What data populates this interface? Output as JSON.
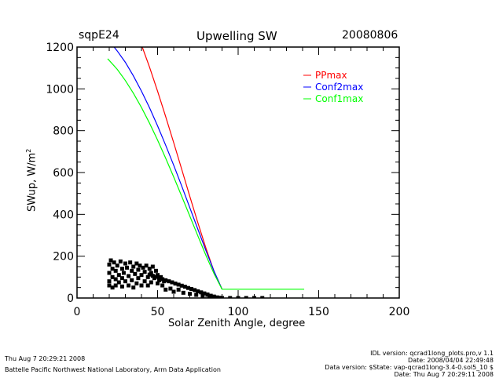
{
  "header": {
    "site": "sqpE24",
    "title": "Upwelling SW",
    "date": "20080806"
  },
  "footer": {
    "left_timestamp": "Thu Aug  7 20:29:21 2008",
    "left_org": "Battelle Pacific Northwest National Laboratory, Arm Data Application",
    "right_lines": [
      "IDL version: qcrad1long_plots.pro,v 1.1",
      "Date: 2008/04/04 22:49:48",
      "Data version: $State: vap-qcrad1long-3.4-0.sol5_10 $",
      "Date: Thu Aug  7 20:29:11 2008"
    ]
  },
  "chart_data": {
    "type": "line",
    "xlabel": "Solar Zenith Angle, degree",
    "ylabel": "SWup, W/m",
    "ylabel_sup": "2",
    "xlim": [
      0,
      200
    ],
    "ylim": [
      0,
      1200
    ],
    "xticks": [
      0,
      50,
      100,
      150,
      200
    ],
    "yticks": [
      0,
      200,
      400,
      600,
      800,
      1000,
      1200
    ],
    "legend_position": "top-right",
    "series": [
      {
        "name": "PPmax",
        "color": "#ff0000",
        "points": [
          [
            40.5,
            1200
          ],
          [
            45,
            1104
          ],
          [
            50,
            989
          ],
          [
            55,
            868
          ],
          [
            60,
            743
          ],
          [
            65,
            615
          ],
          [
            70,
            486
          ],
          [
            75,
            360
          ],
          [
            80,
            239
          ],
          [
            85,
            128
          ],
          [
            90,
            42
          ]
        ]
      },
      {
        "name": "Conf2max",
        "color": "#0000ff",
        "points": [
          [
            23,
            1200
          ],
          [
            25,
            1181
          ],
          [
            30,
            1127
          ],
          [
            35,
            1062
          ],
          [
            40,
            989
          ],
          [
            45,
            910
          ],
          [
            50,
            823
          ],
          [
            55,
            731
          ],
          [
            60,
            635
          ],
          [
            65,
            535
          ],
          [
            70,
            432
          ],
          [
            75,
            329
          ],
          [
            80,
            227
          ],
          [
            85,
            129
          ],
          [
            90,
            42
          ]
        ]
      },
      {
        "name": "Conf1max",
        "color": "#00ff00",
        "points": [
          [
            19,
            1144
          ],
          [
            20,
            1136
          ],
          [
            25,
            1093
          ],
          [
            30,
            1040
          ],
          [
            35,
            979
          ],
          [
            40,
            911
          ],
          [
            45,
            836
          ],
          [
            50,
            755
          ],
          [
            55,
            669
          ],
          [
            60,
            579
          ],
          [
            65,
            486
          ],
          [
            70,
            392
          ],
          [
            75,
            297
          ],
          [
            80,
            204
          ],
          [
            85,
            117
          ],
          [
            90,
            42
          ],
          [
            141,
            42
          ]
        ]
      }
    ],
    "scatter": {
      "color": "#000000",
      "points": [
        [
          20,
          160
        ],
        [
          20,
          120
        ],
        [
          20,
          80
        ],
        [
          20,
          60
        ],
        [
          21,
          180
        ],
        [
          22,
          140
        ],
        [
          22,
          100
        ],
        [
          22,
          50
        ],
        [
          23,
          170
        ],
        [
          24,
          130
        ],
        [
          24,
          90
        ],
        [
          24,
          60
        ],
        [
          25,
          155
        ],
        [
          26,
          110
        ],
        [
          26,
          75
        ],
        [
          27,
          175
        ],
        [
          28,
          140
        ],
        [
          28,
          95
        ],
        [
          28,
          55
        ],
        [
          29,
          120
        ],
        [
          30,
          165
        ],
        [
          30,
          80
        ],
        [
          31,
          145
        ],
        [
          32,
          105
        ],
        [
          32,
          60
        ],
        [
          33,
          170
        ],
        [
          34,
          130
        ],
        [
          34,
          85
        ],
        [
          35,
          150
        ],
        [
          35,
          50
        ],
        [
          36,
          115
        ],
        [
          37,
          165
        ],
        [
          37,
          70
        ],
        [
          38,
          135
        ],
        [
          38,
          95
        ],
        [
          39,
          155
        ],
        [
          40,
          110
        ],
        [
          40,
          60
        ],
        [
          41,
          145
        ],
        [
          42,
          80
        ],
        [
          42,
          125
        ],
        [
          43,
          155
        ],
        [
          44,
          100
        ],
        [
          44,
          60
        ],
        [
          45,
          140
        ],
        [
          46,
          120
        ],
        [
          46,
          75
        ],
        [
          47,
          150
        ],
        [
          48,
          95
        ],
        [
          49,
          130
        ],
        [
          50,
          110
        ],
        [
          50,
          70
        ],
        [
          51,
          85
        ],
        [
          52,
          100
        ],
        [
          53,
          60
        ],
        [
          54,
          80
        ],
        [
          45,
          112
        ],
        [
          47,
          106
        ],
        [
          49,
          101
        ],
        [
          51,
          96
        ],
        [
          53,
          90
        ],
        [
          55,
          85
        ],
        [
          57,
          80
        ],
        [
          59,
          75
        ],
        [
          61,
          69
        ],
        [
          63,
          64
        ],
        [
          65,
          59
        ],
        [
          67,
          54
        ],
        [
          69,
          48
        ],
        [
          71,
          43
        ],
        [
          73,
          38
        ],
        [
          75,
          32
        ],
        [
          77,
          27
        ],
        [
          79,
          22
        ],
        [
          81,
          17
        ],
        [
          83,
          11
        ],
        [
          85,
          7
        ],
        [
          87,
          3
        ],
        [
          89,
          1
        ],
        [
          55,
          40
        ],
        [
          58,
          45
        ],
        [
          60,
          30
        ],
        [
          63,
          40
        ],
        [
          66,
          25
        ],
        [
          70,
          20
        ],
        [
          74,
          15
        ],
        [
          78,
          10
        ],
        [
          82,
          5
        ],
        [
          90,
          0
        ],
        [
          95,
          0
        ],
        [
          100,
          0
        ],
        [
          105,
          0
        ],
        [
          110,
          0
        ],
        [
          115,
          0
        ]
      ]
    }
  }
}
